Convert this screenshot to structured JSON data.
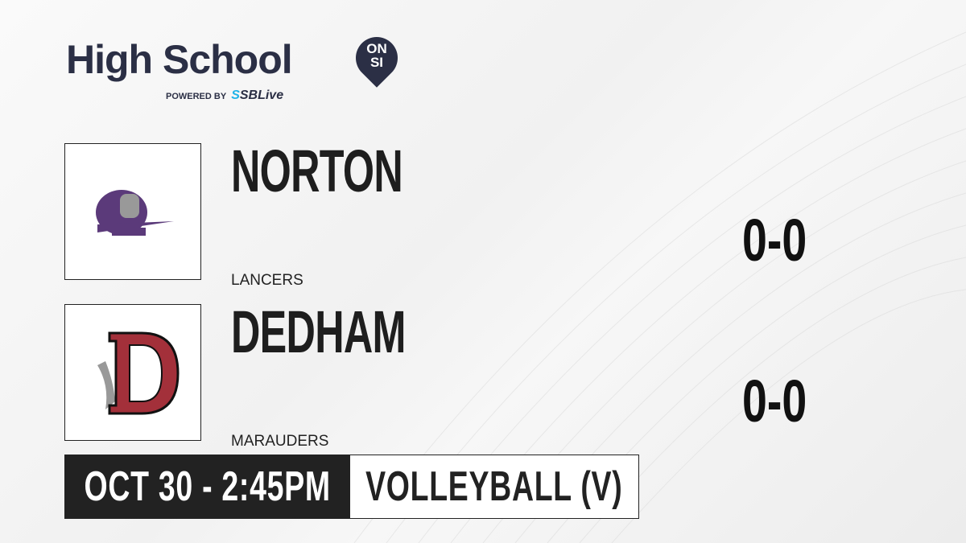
{
  "brand": {
    "title": "High School",
    "badge_top": "ON",
    "badge_bottom": "SI",
    "powered_by": "POWERED BY",
    "partner_prefix": "S",
    "partner": "SBLive"
  },
  "teams": [
    {
      "name": "NORTON",
      "mascot": "LANCERS",
      "score": "0-0",
      "logo_color": "#5b3a7a"
    },
    {
      "name": "DEDHAM",
      "mascot": "MARAUDERS",
      "score": "0-0",
      "logo_color": "#a3303a"
    }
  ],
  "game": {
    "datetime": "OCT 30 - 2:45PM",
    "sport": "VOLLEYBALL (V)"
  }
}
